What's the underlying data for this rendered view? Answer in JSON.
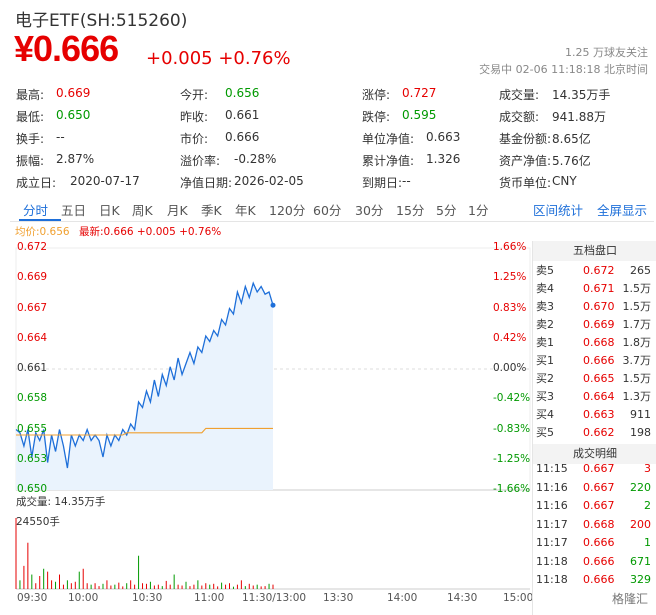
{
  "header": {
    "title": "电子ETF(SH:515260)",
    "price": "¥0.666",
    "change": "+0.005 +0.76%",
    "fans": "1.25 万球友关注",
    "status": "交易中 02-06 11:18:18 北京时间"
  },
  "stats": [
    {
      "label": "最高:",
      "value": "0.669",
      "color": "red"
    },
    {
      "label": "今开:",
      "value": "0.656",
      "color": "green"
    },
    {
      "label": "涨停:",
      "value": "0.727",
      "color": "red"
    },
    {
      "label": "成交量:",
      "value": "14.35万手",
      "color": ""
    },
    {
      "label": "最低:",
      "value": "0.650",
      "color": "green"
    },
    {
      "label": "昨收:",
      "value": "0.661",
      "color": ""
    },
    {
      "label": "跌停:",
      "value": "0.595",
      "color": "green"
    },
    {
      "label": "成交额:",
      "value": "941.88万",
      "color": ""
    },
    {
      "label": "换手:",
      "value": "--",
      "color": ""
    },
    {
      "label": "市价:",
      "value": "0.666",
      "color": ""
    },
    {
      "label": "单位净值:",
      "value": "0.663",
      "color": ""
    },
    {
      "label": "基金份额:",
      "value": "8.65亿",
      "color": ""
    },
    {
      "label": "振幅:",
      "value": "2.87%",
      "color": ""
    },
    {
      "label": "溢价率:",
      "value": "-0.28%",
      "color": ""
    },
    {
      "label": "累计净值:",
      "value": "1.326",
      "color": ""
    },
    {
      "label": "资产净值:",
      "value": "5.76亿",
      "color": ""
    },
    {
      "label": "成立日:",
      "value": "2020-07-17",
      "color": ""
    },
    {
      "label": "净值日期:",
      "value": "2026-02-05",
      "color": ""
    },
    {
      "label": "到期日:",
      "value": "--",
      "color": ""
    },
    {
      "label": "货币单位:",
      "value": "CNY",
      "color": ""
    }
  ],
  "tabs": [
    "分时",
    "五日",
    "日K",
    "周K",
    "月K",
    "季K",
    "年K",
    "120分",
    "60分",
    "30分",
    "15分",
    "5分",
    "1分"
  ],
  "active_tab": "分时",
  "tab_links": [
    "区间统计",
    "全屏显示"
  ],
  "legend": {
    "avg": "均价:0.656",
    "last": "最新:0.666 +0.005 +0.76%"
  },
  "chart_data": {
    "type": "line",
    "title": "",
    "price_ticks_left": [
      "0.672",
      "0.669",
      "0.667",
      "0.664",
      "0.661",
      "0.658",
      "0.655",
      "0.653",
      "0.650"
    ],
    "pct_ticks_right": [
      "1.66%",
      "1.25%",
      "0.83%",
      "0.42%",
      "0.00%",
      "-0.42%",
      "-0.83%",
      "-1.25%",
      "-1.66%"
    ],
    "ylim": [
      0.65,
      0.672
    ],
    "prev_close": 0.661,
    "x_ticks": [
      "09:30",
      "10:00",
      "10:30",
      "11:00",
      "11:30/13:00",
      "13:30",
      "14:00",
      "14:30",
      "15:00"
    ],
    "series": [
      {
        "values": [
          0.6555,
          0.6552,
          0.654,
          0.6555,
          0.653,
          0.6552,
          0.6545,
          0.6555,
          0.6525,
          0.655,
          0.6535,
          0.6555,
          0.654,
          0.652,
          0.655,
          0.654,
          0.655,
          0.6545,
          0.6555,
          0.6545,
          0.655,
          0.6545,
          0.653,
          0.655,
          0.654,
          0.655,
          0.6545,
          0.6555,
          0.655,
          0.656,
          0.6555,
          0.658,
          0.6575,
          0.659,
          0.658,
          0.66,
          0.6585,
          0.6605,
          0.6595,
          0.6612,
          0.66,
          0.662,
          0.6605,
          0.6615,
          0.6625,
          0.6615,
          0.663,
          0.6625,
          0.664,
          0.6635,
          0.6645,
          0.664,
          0.6655,
          0.665,
          0.6665,
          0.666,
          0.668,
          0.667,
          0.6685,
          0.6675,
          0.6688,
          0.668,
          0.6685,
          0.6678,
          0.668,
          0.6668
        ]
      },
      {
        "values": [
          0.655,
          0.655,
          0.655,
          0.655,
          0.655,
          0.655,
          0.655,
          0.655,
          0.655,
          0.655,
          0.655,
          0.655,
          0.655,
          0.655,
          0.655,
          0.655,
          0.655,
          0.655,
          0.655,
          0.655,
          0.655,
          0.655,
          0.655,
          0.655,
          0.655,
          0.655,
          0.655,
          0.655,
          0.6552,
          0.6552,
          0.6552,
          0.6552,
          0.6552,
          0.6552,
          0.6552,
          0.6552,
          0.6552,
          0.6552,
          0.6552,
          0.6552,
          0.6552,
          0.6552,
          0.6552,
          0.6552,
          0.6552,
          0.6552,
          0.6552,
          0.6552,
          0.6556,
          0.6556,
          0.6556,
          0.6556,
          0.6556,
          0.6556,
          0.6556,
          0.6556,
          0.6556,
          0.6556,
          0.6556,
          0.6556,
          0.6556,
          0.6556,
          0.6556,
          0.6556,
          0.6556,
          0.6556
        ]
      }
    ],
    "volume_label": "成交量: 14.35万手",
    "volume_max": "24550手",
    "volume_ylim": [
      0,
      24550
    ],
    "volumes": [
      24550,
      3000,
      8000,
      16000,
      5000,
      2000,
      4500,
      7000,
      6000,
      3000,
      2500,
      5000,
      1500,
      3000,
      2000,
      2500,
      6000,
      7000,
      2000,
      1500,
      2000,
      1000,
      1800,
      3000,
      1200,
      1500,
      2200,
      900,
      2000,
      3000,
      1500,
      11500,
      2000,
      1800,
      2500,
      1200,
      1500,
      1000,
      2800,
      1500,
      5000,
      1500,
      1200,
      2500,
      1000,
      1500,
      3000,
      1200,
      2000,
      1500,
      1800,
      900,
      2200,
      1500,
      2000,
      800,
      1500,
      3000,
      1000,
      1800,
      1200,
      1500,
      900,
      1000,
      1800,
      1500
    ]
  },
  "orderbook": {
    "title": "五档盘口",
    "rows": [
      {
        "label": "卖5",
        "price": "0.672",
        "vol": "265",
        "color": "red"
      },
      {
        "label": "卖4",
        "price": "0.671",
        "vol": "1.5万",
        "color": "red"
      },
      {
        "label": "卖3",
        "price": "0.670",
        "vol": "1.5万",
        "color": "red"
      },
      {
        "label": "卖2",
        "price": "0.669",
        "vol": "1.7万",
        "color": "red"
      },
      {
        "label": "卖1",
        "price": "0.668",
        "vol": "1.8万",
        "color": "red"
      },
      {
        "label": "买1",
        "price": "0.666",
        "vol": "3.7万",
        "color": "red"
      },
      {
        "label": "买2",
        "price": "0.665",
        "vol": "1.5万",
        "color": "red"
      },
      {
        "label": "买3",
        "price": "0.664",
        "vol": "1.3万",
        "color": "red"
      },
      {
        "label": "买4",
        "price": "0.663",
        "vol": "911",
        "color": "red"
      },
      {
        "label": "买5",
        "price": "0.662",
        "vol": "198",
        "color": "red"
      }
    ]
  },
  "trades": {
    "title": "成交明细",
    "rows": [
      {
        "time": "11:15",
        "price": "0.667",
        "vol": "3",
        "vcolor": "red"
      },
      {
        "time": "11:16",
        "price": "0.667",
        "vol": "220",
        "vcolor": "green"
      },
      {
        "time": "11:16",
        "price": "0.667",
        "vol": "2",
        "vcolor": "green"
      },
      {
        "time": "11:17",
        "price": "0.668",
        "vol": "200",
        "vcolor": "red"
      },
      {
        "time": "11:17",
        "price": "0.666",
        "vol": "1",
        "vcolor": "green"
      },
      {
        "time": "11:18",
        "price": "0.666",
        "vol": "671",
        "vcolor": "green"
      },
      {
        "time": "11:18",
        "price": "0.666",
        "vol": "329",
        "vcolor": "green"
      }
    ]
  },
  "watermark": "格隆汇",
  "colors": {
    "up": "#e60000",
    "down": "#009900",
    "line": "#1e6fd9",
    "avg": "#f0a030",
    "accent": "#1e6fd9"
  }
}
